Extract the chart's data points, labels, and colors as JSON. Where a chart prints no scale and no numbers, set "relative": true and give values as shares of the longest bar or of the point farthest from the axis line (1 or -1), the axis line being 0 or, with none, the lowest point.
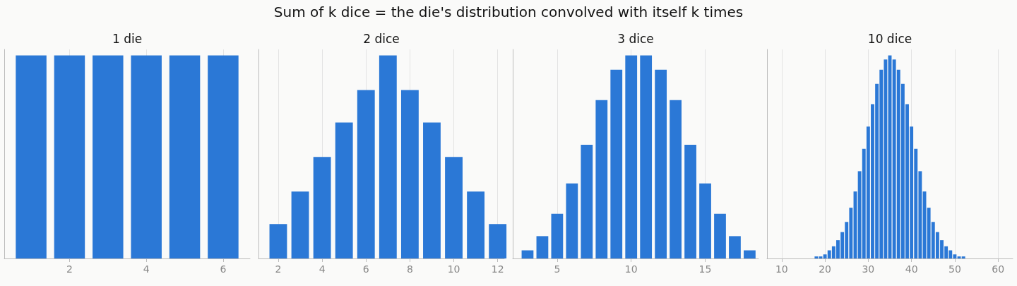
{
  "chart_data": [
    {
      "type": "bar",
      "title": "1 die",
      "annotations": [
        "Sum of k dice = the die's distribution convolved with itself k times"
      ],
      "x": [
        1,
        2,
        3,
        4,
        5,
        6
      ],
      "values": [
        1,
        1,
        1,
        1,
        1,
        1
      ],
      "color": "#2b78d6",
      "relative": true,
      "xlim": [
        0.3,
        6.7
      ],
      "xticks": [
        2,
        4,
        6
      ],
      "grid": "x"
    },
    {
      "type": "bar",
      "title": "2 dice",
      "x": [
        2,
        3,
        4,
        5,
        6,
        7,
        8,
        9,
        10,
        11,
        12
      ],
      "values": [
        0.17,
        0.33,
        0.5,
        0.67,
        0.83,
        1,
        0.83,
        0.67,
        0.5,
        0.33,
        0.17
      ],
      "color": "#2b78d6",
      "relative": true,
      "xlim": [
        1.1,
        12.3
      ],
      "xticks": [
        2,
        4,
        6,
        8,
        10,
        12
      ],
      "grid": "x"
    },
    {
      "type": "bar",
      "title": "3 dice",
      "x": [
        3,
        4,
        5,
        6,
        7,
        8,
        9,
        10,
        11,
        12,
        13,
        14,
        15,
        16,
        17,
        18
      ],
      "values": [
        0.04,
        0.11,
        0.22,
        0.37,
        0.56,
        0.78,
        0.93,
        1,
        1,
        0.93,
        0.78,
        0.56,
        0.37,
        0.22,
        0.11,
        0.04
      ],
      "color": "#2b78d6",
      "relative": true,
      "xlim": [
        2,
        18.6
      ],
      "xticks": [
        5,
        10,
        15
      ],
      "grid": "x"
    },
    {
      "type": "bar",
      "title": "10 dice",
      "x": [
        18,
        19,
        20,
        21,
        22,
        23,
        24,
        25,
        26,
        27,
        28,
        29,
        30,
        31,
        32,
        33,
        34,
        35,
        36,
        37,
        38,
        39,
        40,
        41,
        42,
        43,
        44,
        45,
        46,
        47,
        48,
        49,
        50,
        51,
        52
      ],
      "values": [
        0.01,
        0.01,
        0.02,
        0.04,
        0.06,
        0.09,
        0.13,
        0.18,
        0.25,
        0.33,
        0.43,
        0.54,
        0.65,
        0.76,
        0.86,
        0.93,
        0.98,
        1,
        0.98,
        0.93,
        0.86,
        0.76,
        0.65,
        0.54,
        0.43,
        0.33,
        0.25,
        0.18,
        0.13,
        0.09,
        0.06,
        0.04,
        0.02,
        0.01,
        0.01
      ],
      "color": "#2b78d6",
      "relative": true,
      "xlim": [
        6.6,
        63.4
      ],
      "xticks": [
        10,
        20,
        30,
        40,
        50,
        60
      ],
      "grid": "x"
    }
  ]
}
